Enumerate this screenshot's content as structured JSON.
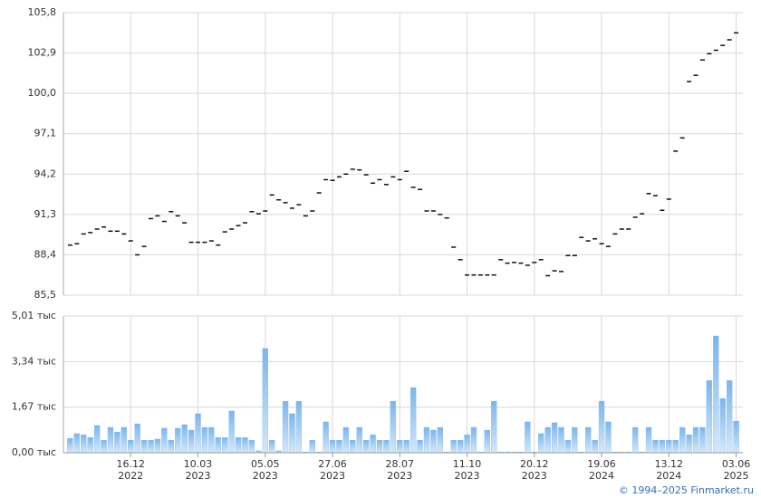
{
  "chart_data": [
    {
      "type": "dash",
      "color": "#111111",
      "ylim": [
        85.5,
        105.8
      ],
      "yticks": [
        {
          "value": 85.5,
          "label": "85,5"
        },
        {
          "value": 88.4,
          "label": "88,4"
        },
        {
          "value": 91.3,
          "label": "91,3"
        },
        {
          "value": 94.2,
          "label": "94,2"
        },
        {
          "value": 97.1,
          "label": "97,1"
        },
        {
          "value": 100.0,
          "label": "100,0"
        },
        {
          "value": 102.9,
          "label": "102,9"
        },
        {
          "value": 105.8,
          "label": "105,8"
        }
      ],
      "grid": true,
      "values": [
        89.1,
        89.2,
        89.9,
        90.0,
        90.25,
        90.4,
        90.1,
        90.1,
        89.9,
        89.4,
        88.4,
        89.0,
        91.0,
        91.2,
        90.8,
        91.5,
        91.2,
        90.7,
        89.3,
        89.3,
        89.3,
        89.4,
        89.1,
        90.05,
        90.25,
        90.5,
        90.7,
        91.5,
        91.35,
        91.55,
        92.7,
        92.35,
        92.15,
        91.75,
        92.0,
        91.2,
        91.55,
        92.85,
        93.8,
        93.75,
        94.0,
        94.2,
        94.55,
        94.5,
        94.15,
        93.55,
        93.8,
        93.45,
        94.0,
        93.8,
        94.4,
        93.25,
        93.1,
        91.55,
        91.55,
        91.3,
        91.05,
        88.95,
        88.05,
        86.95,
        86.95,
        86.95,
        86.95,
        86.95,
        88.05,
        87.8,
        87.85,
        87.8,
        87.65,
        87.85,
        88.05,
        86.9,
        87.25,
        87.2,
        88.35,
        88.35,
        89.65,
        89.4,
        89.55,
        89.2,
        89.0,
        89.9,
        90.25,
        90.25,
        91.1,
        91.35,
        92.8,
        92.65,
        91.6,
        92.4,
        95.85,
        96.8,
        100.85,
        101.3,
        102.4,
        102.85,
        103.1,
        103.45,
        103.85,
        104.35
      ]
    },
    {
      "type": "bar",
      "color": "#7cb5ec",
      "ylim": [
        0,
        5.01
      ],
      "yticks": [
        {
          "value": 0,
          "label": "0,00 тыс"
        },
        {
          "value": 1.67,
          "label": "1,67 тыс"
        },
        {
          "value": 3.34,
          "label": "3,34 тыс"
        },
        {
          "value": 5.01,
          "label": "5,01 тыс"
        }
      ],
      "grid": true,
      "categories": [
        null,
        null,
        null,
        null,
        null,
        null,
        null,
        null,
        null,
        "16.12\n2022",
        null,
        null,
        null,
        null,
        null,
        null,
        null,
        null,
        null,
        "10.03\n2023",
        null,
        null,
        null,
        null,
        null,
        null,
        null,
        null,
        null,
        "05.05\n2023",
        null,
        null,
        null,
        null,
        null,
        null,
        null,
        null,
        null,
        "27.06\n2023",
        null,
        null,
        null,
        null,
        null,
        null,
        null,
        null,
        null,
        "28.07\n2023",
        null,
        null,
        null,
        null,
        null,
        null,
        null,
        null,
        null,
        "11.10\n2023",
        null,
        null,
        null,
        null,
        null,
        null,
        null,
        null,
        null,
        "20.12\n2023",
        null,
        null,
        null,
        null,
        null,
        null,
        null,
        null,
        null,
        "19.06\n2024",
        null,
        null,
        null,
        null,
        null,
        null,
        null,
        null,
        null,
        "13.12\n2024",
        null,
        null,
        null,
        null,
        null,
        null,
        null,
        null,
        null,
        "03.06\n2025"
      ],
      "values": [
        0.53,
        0.7,
        0.66,
        0.56,
        1.0,
        0.46,
        0.93,
        0.76,
        0.93,
        0.46,
        1.06,
        0.46,
        0.46,
        0.5,
        0.9,
        0.46,
        0.9,
        1.03,
        0.83,
        1.43,
        0.93,
        0.93,
        0.56,
        0.56,
        1.53,
        0.56,
        0.56,
        0.46,
        0.07,
        3.82,
        0.46,
        0.07,
        1.89,
        1.43,
        1.89,
        0.03,
        0.46,
        0.03,
        1.13,
        0.46,
        0.46,
        0.93,
        0.46,
        0.93,
        0.46,
        0.66,
        0.46,
        0.46,
        1.89,
        0.46,
        0.46,
        2.39,
        0.46,
        0.93,
        0.83,
        0.93,
        0.03,
        0.46,
        0.46,
        0.66,
        0.93,
        0.03,
        0.83,
        1.89,
        0.03,
        0.03,
        0.03,
        0.03,
        1.13,
        0.03,
        0.7,
        0.93,
        1.1,
        0.93,
        0.46,
        0.93,
        0.03,
        0.93,
        0.46,
        1.89,
        1.13,
        0.03,
        0.03,
        0.03,
        0.93,
        0.03,
        0.93,
        0.46,
        0.46,
        0.46,
        0.46,
        0.93,
        0.66,
        0.93,
        0.93,
        2.65,
        4.28,
        1.99,
        2.65,
        1.16
      ]
    }
  ],
  "footer": "© 1994–2025 Finmarket.ru"
}
